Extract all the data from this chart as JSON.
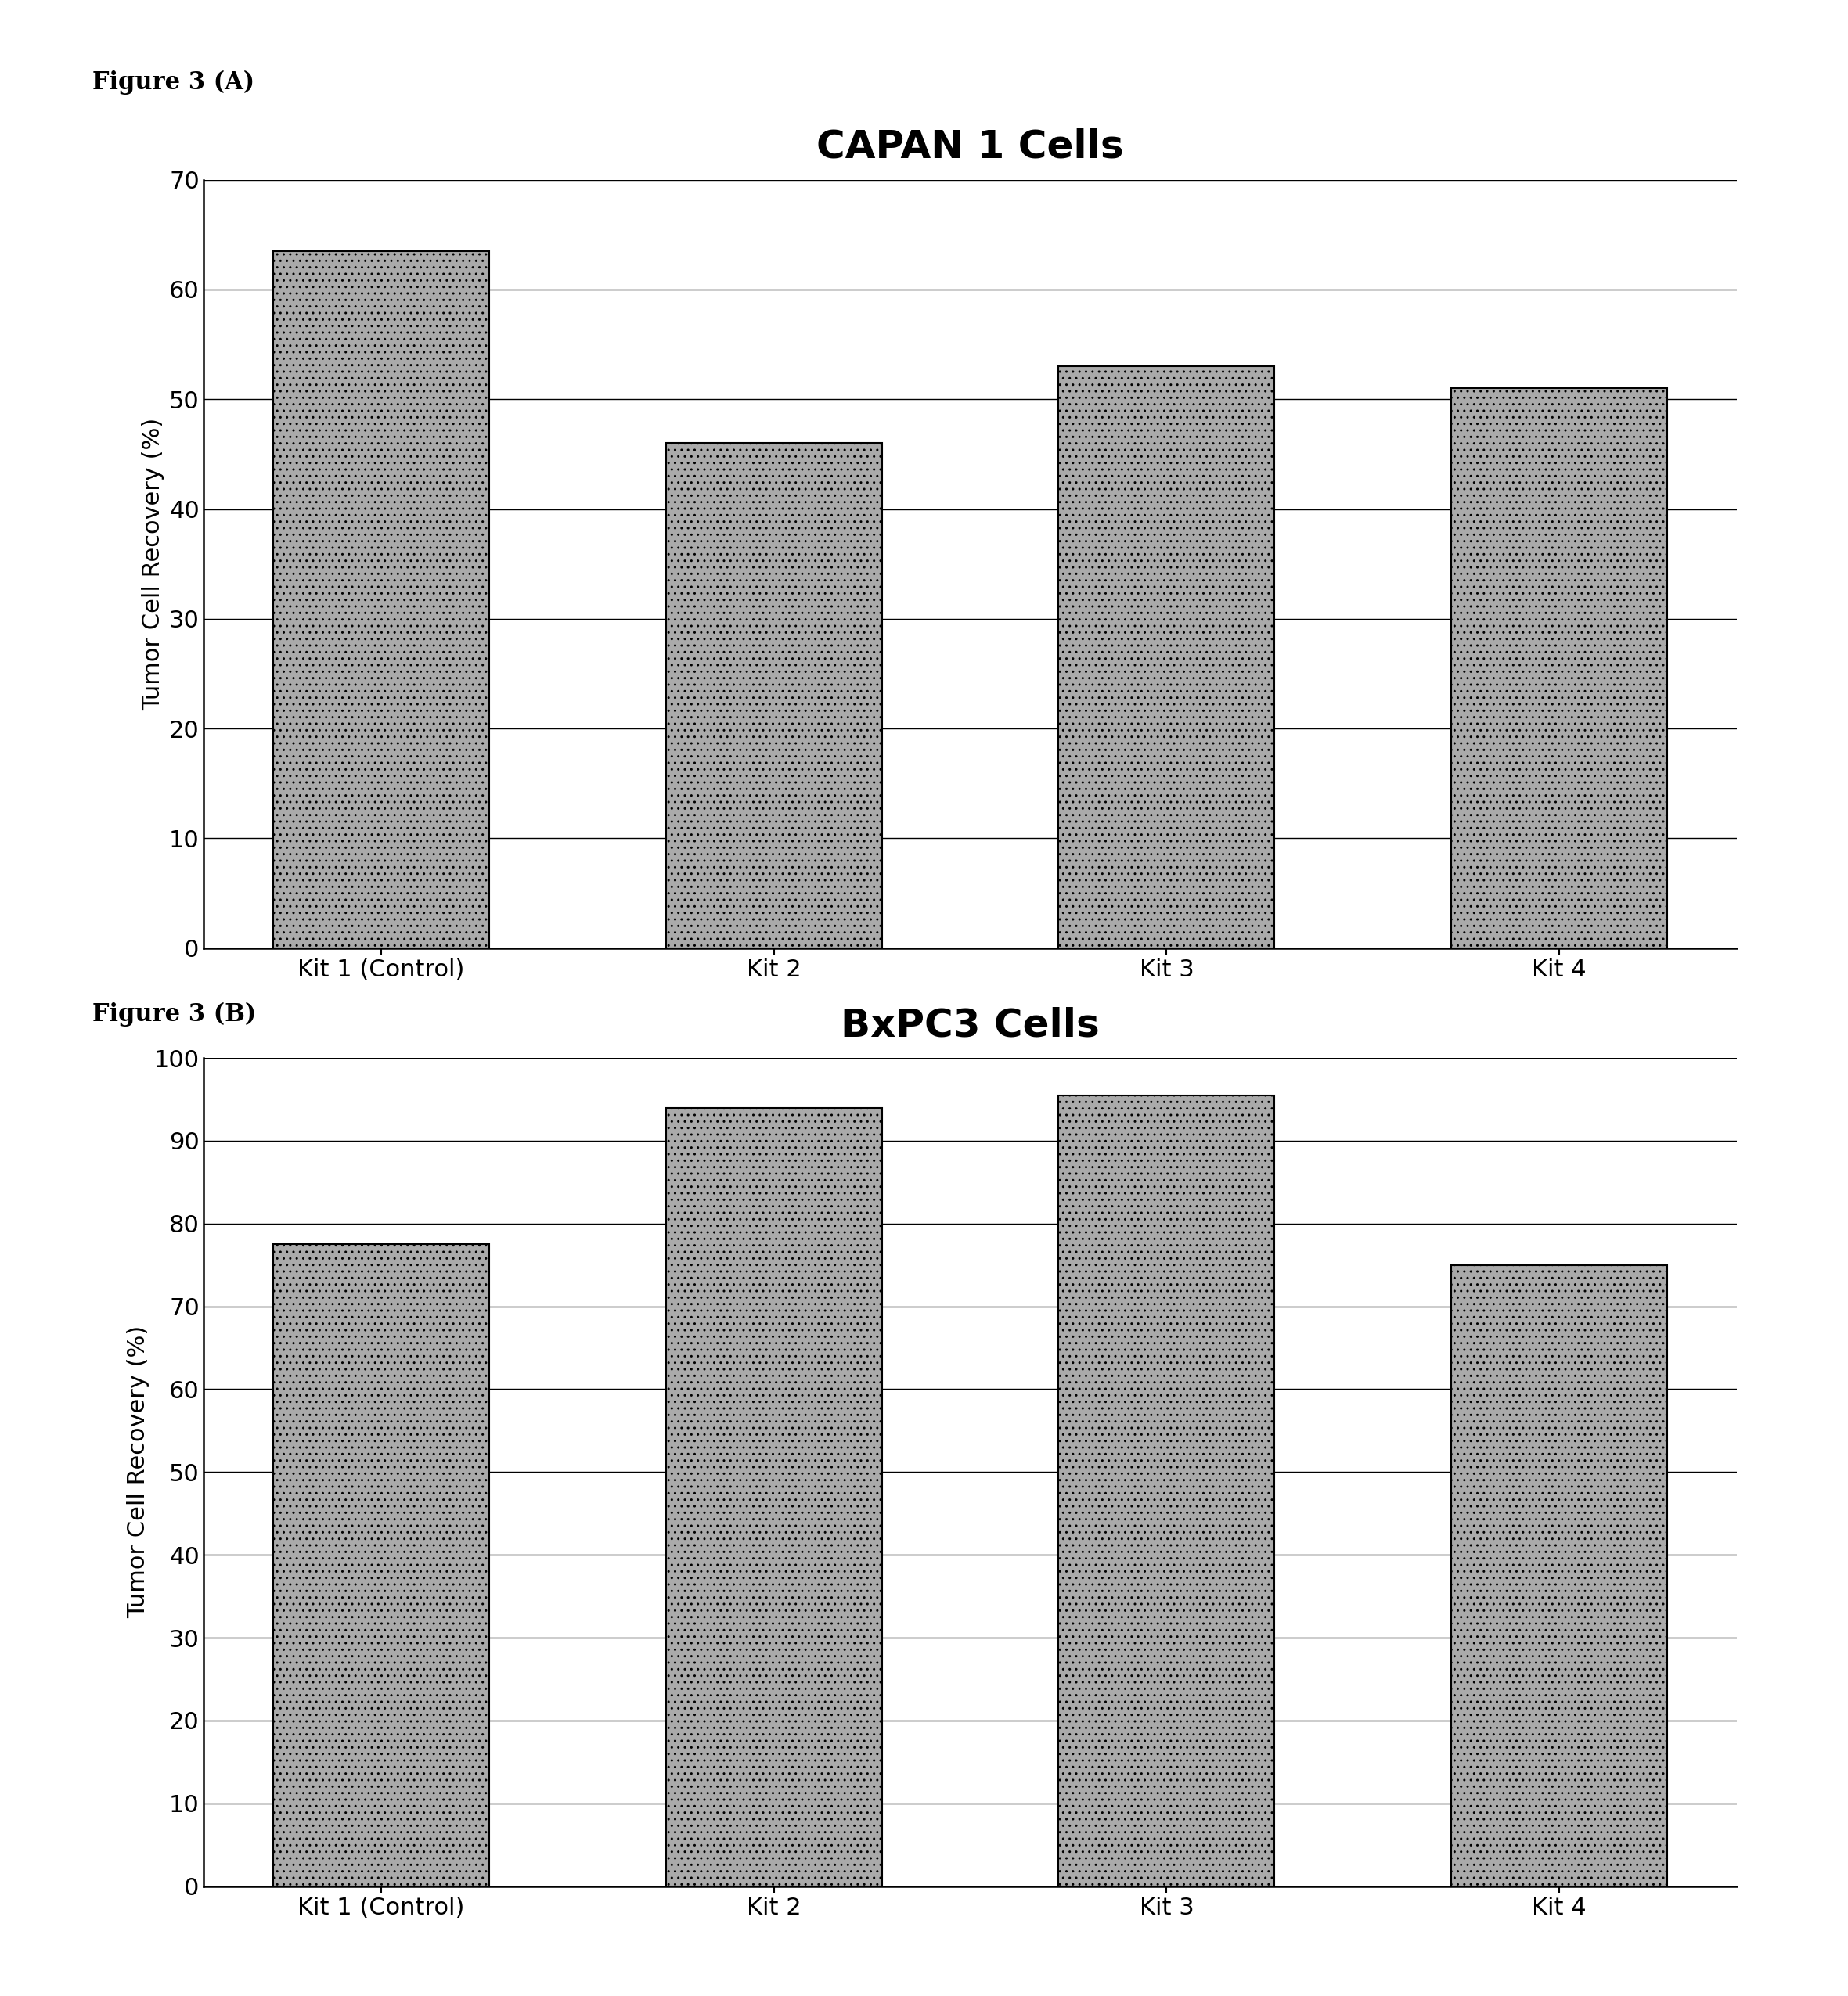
{
  "fig_label_A": "Figure 3 (A)",
  "fig_label_B": "Figure 3 (B)",
  "title_A": "CAPAN 1 Cells",
  "title_B": "BxPC3 Cells",
  "categories": [
    "Kit 1 (Control)",
    "Kit 2",
    "Kit 3",
    "Kit 4"
  ],
  "values_A": [
    63.5,
    46.0,
    53.0,
    51.0
  ],
  "values_B": [
    77.5,
    94.0,
    95.5,
    75.0
  ],
  "ylabel": "Tumor Cell Recovery (%)",
  "ylim_A": [
    0,
    70
  ],
  "ylim_B": [
    0,
    100
  ],
  "yticks_A": [
    0,
    10,
    20,
    30,
    40,
    50,
    60,
    70
  ],
  "yticks_B": [
    0,
    10,
    20,
    30,
    40,
    50,
    60,
    70,
    80,
    90,
    100
  ],
  "bar_color": "#aaaaaa",
  "bar_edgecolor": "#000000",
  "background_color": "#ffffff",
  "bar_hatch": "..",
  "title_fontsize": 36,
  "label_fontsize": 22,
  "tick_fontsize": 22,
  "fig_label_fontsize": 22,
  "bar_width": 0.55,
  "grid_linewidth": 1.0,
  "grid_linestyle": "-",
  "spine_linewidth": 1.8
}
